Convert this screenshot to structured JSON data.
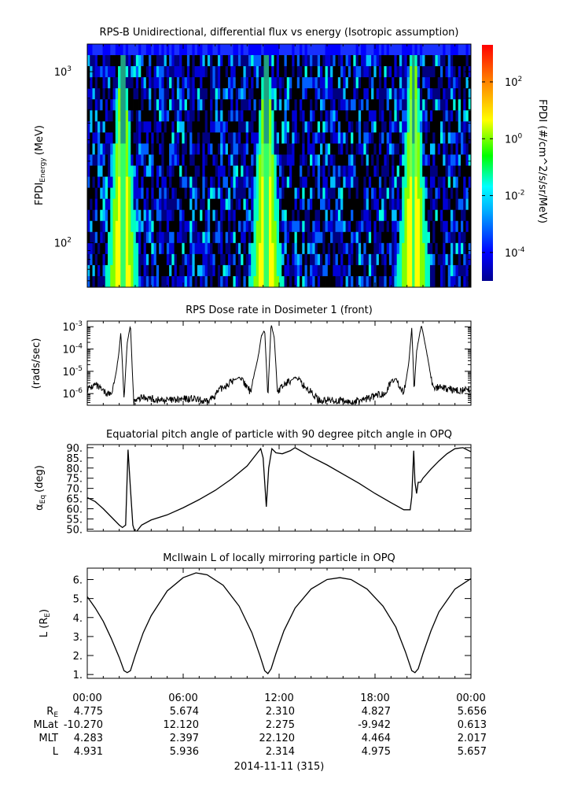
{
  "chart_data": [
    {
      "type": "heatmap",
      "title": "RPS-B  Unidirectional, differential flux vs energy (Isotropic assumption)",
      "ylabel_main": "FPDI",
      "ylabel_sub": "Energy",
      "ylabel_unit": "(MeV)",
      "yscale": "log",
      "ylim": [
        55,
        1450
      ],
      "yticks": [
        {
          "value": 100,
          "base": "10",
          "exp": "2"
        },
        {
          "value": 1000,
          "base": "10",
          "exp": "3"
        }
      ],
      "xlim_hours": [
        0,
        24
      ],
      "colorbar": {
        "label": "FPDI (#/cm^2/s/sr/MeV)",
        "scale": "log",
        "range": [
          1e-05,
          2000
        ],
        "ticks": [
          {
            "value": 0.0001,
            "base": "10",
            "exp": "-4"
          },
          {
            "value": 0.01,
            "base": "10",
            "exp": "-2"
          },
          {
            "value": 1,
            "base": "10",
            "exp": "0"
          },
          {
            "value": 100,
            "base": "10",
            "exp": "2"
          }
        ]
      },
      "flux_peaks_hours": [
        2.2,
        11.2,
        20.4
      ],
      "colors": [
        "#00008f",
        "#0000ff",
        "#00ffff",
        "#00ff00",
        "#ffff00",
        "#ff7f00",
        "#ff0000"
      ]
    },
    {
      "type": "line",
      "title": "RPS  Dose rate in Dosimeter 1 (front)",
      "ylabel": "(rads/sec)",
      "yscale": "log",
      "ylim": [
        3e-07,
        0.0018
      ],
      "yticks": [
        {
          "value": 1e-06,
          "base": "10",
          "exp": "-6"
        },
        {
          "value": 1e-05,
          "base": "10",
          "exp": "-5"
        },
        {
          "value": 0.0001,
          "base": "10",
          "exp": "-4"
        },
        {
          "value": 0.001,
          "base": "10",
          "exp": "-3"
        }
      ],
      "xlim_hours": [
        0,
        24
      ],
      "x": [
        0,
        0.5,
        1,
        1.5,
        1.8,
        2.0,
        2.1,
        2.2,
        2.3,
        2.5,
        2.7,
        2.9,
        3.5,
        4.5,
        5.5,
        6.5,
        7.5,
        8.5,
        9.5,
        10.2,
        10.7,
        10.9,
        11.1,
        11.2,
        11.3,
        11.5,
        11.7,
        11.9,
        12.4,
        13.0,
        13.5,
        14.5,
        15.5,
        16.5,
        17.5,
        18.5,
        19.3,
        19.8,
        20.1,
        20.3,
        20.45,
        20.6,
        20.9,
        21.2,
        21.6,
        22.0,
        23.0,
        24.0
      ],
      "y": [
        1.5e-06,
        2.5e-06,
        1.2e-06,
        9e-07,
        8e-06,
        9e-05,
        0.0006,
        2e-05,
        6e-07,
        0.0002,
        0.0012,
        4e-07,
        7e-07,
        5e-07,
        5e-07,
        6e-07,
        4e-07,
        2e-06,
        5.5e-06,
        1.2e-06,
        5e-05,
        0.0004,
        0.0007,
        2e-05,
        8e-07,
        0.0014,
        0.0003,
        1.2e-06,
        2.8e-06,
        5.5e-06,
        2.5e-06,
        5e-07,
        5e-07,
        4e-07,
        6e-07,
        1e-06,
        5e-06,
        1e-06,
        2e-05,
        0.0009,
        1.5e-06,
        8e-05,
        0.0012,
        0.0001,
        2e-06,
        1.8e-06,
        1.4e-06,
        1.4e-06
      ]
    },
    {
      "type": "line",
      "title": "Equatorial pitch angle of particle with 90 degree pitch angle in OPQ",
      "ylabel_main": "α",
      "ylabel_sub": "Eq",
      "ylabel_unit": "(deg)",
      "ylim": [
        49,
        91.5
      ],
      "yticks": [
        {
          "value": 50,
          "label": "50."
        },
        {
          "value": 55,
          "label": "55."
        },
        {
          "value": 60,
          "label": "60."
        },
        {
          "value": 65,
          "label": "65."
        },
        {
          "value": 70,
          "label": "70."
        },
        {
          "value": 75,
          "label": "75."
        },
        {
          "value": 80,
          "label": "80."
        },
        {
          "value": 85,
          "label": "85."
        },
        {
          "value": 90,
          "label": "90."
        }
      ],
      "xlim_hours": [
        0,
        24
      ],
      "x": [
        0,
        0.5,
        1.0,
        1.5,
        2.0,
        2.2,
        2.4,
        2.55,
        2.7,
        2.85,
        3.0,
        3.4,
        4.0,
        5.0,
        6.0,
        7.0,
        8.0,
        9.0,
        10.0,
        10.6,
        10.85,
        11.0,
        11.2,
        11.35,
        11.55,
        11.8,
        12.2,
        12.7,
        13.0,
        14.0,
        15.0,
        16.0,
        17.0,
        18.0,
        19.0,
        19.8,
        20.2,
        20.3,
        20.42,
        20.5,
        20.6,
        20.7,
        20.85,
        21.0,
        21.5,
        22.0,
        22.5,
        23.0,
        23.5,
        24.0
      ],
      "y": [
        65.5,
        63.5,
        60.0,
        56.0,
        52.0,
        50.8,
        52.0,
        89.0,
        70.0,
        52.0,
        48.0,
        52.0,
        54.5,
        57.0,
        60.5,
        64.5,
        69.0,
        74.5,
        81.0,
        87.0,
        89.5,
        85.0,
        61.0,
        80.0,
        89.5,
        87.5,
        87.0,
        88.5,
        90.0,
        85.5,
        81.5,
        77.0,
        72.5,
        67.5,
        63.0,
        59.5,
        59.5,
        66.0,
        88.5,
        73.0,
        67.5,
        73.0,
        73.0,
        75.0,
        79.5,
        83.5,
        87.0,
        89.5,
        90.0,
        88.0
      ]
    },
    {
      "type": "line",
      "title": "McIlwain L of locally mirroring particle in OPQ",
      "ylabel_main": "L (R",
      "ylabel_sub": "E",
      "ylabel_unit": ")",
      "ylim": [
        0.8,
        6.6
      ],
      "yticks": [
        {
          "value": 1,
          "label": "1."
        },
        {
          "value": 2,
          "label": "2."
        },
        {
          "value": 3,
          "label": "3."
        },
        {
          "value": 4,
          "label": "4."
        },
        {
          "value": 5,
          "label": "5."
        },
        {
          "value": 6,
          "label": "6."
        }
      ],
      "xlim_hours": [
        0,
        24
      ],
      "x": [
        0,
        0.5,
        1.0,
        1.5,
        2.0,
        2.3,
        2.5,
        2.7,
        3.0,
        3.5,
        4.0,
        5.0,
        6.0,
        6.8,
        7.5,
        8.5,
        9.5,
        10.3,
        10.8,
        11.1,
        11.3,
        11.5,
        11.8,
        12.3,
        13.0,
        14.0,
        15.0,
        15.8,
        16.5,
        17.5,
        18.5,
        19.3,
        19.9,
        20.3,
        20.5,
        20.7,
        21.0,
        21.5,
        22.0,
        23.0,
        24.0
      ],
      "y": [
        5.1,
        4.5,
        3.8,
        2.9,
        1.9,
        1.2,
        1.1,
        1.2,
        2.0,
        3.2,
        4.1,
        5.4,
        6.1,
        6.35,
        6.25,
        5.7,
        4.6,
        3.2,
        2.0,
        1.2,
        1.05,
        1.3,
        2.1,
        3.3,
        4.5,
        5.5,
        6.0,
        6.1,
        6.0,
        5.5,
        4.6,
        3.5,
        2.2,
        1.2,
        1.1,
        1.3,
        2.1,
        3.3,
        4.3,
        5.5,
        6.05
      ]
    }
  ],
  "time_axis": {
    "ticks": [
      {
        "hour": 0,
        "label": "00:00"
      },
      {
        "hour": 6,
        "label": "06:00"
      },
      {
        "hour": 12,
        "label": "12:00"
      },
      {
        "hour": 18,
        "label": "18:00"
      },
      {
        "hour": 24,
        "label": "00:00"
      }
    ],
    "date_label": "2014-11-11 (315)"
  },
  "ephemeris": {
    "rows": [
      {
        "label_main": "R",
        "label_sub": "E",
        "values": [
          "4.775",
          "5.674",
          "2.310",
          "4.827",
          "5.656"
        ]
      },
      {
        "label_main": "MLat",
        "label_sub": "",
        "values": [
          "-10.270",
          "12.120",
          "2.275",
          "-9.942",
          "0.613"
        ]
      },
      {
        "label_main": "MLT",
        "label_sub": "",
        "values": [
          "4.283",
          "2.397",
          "22.120",
          "4.464",
          "2.017"
        ]
      },
      {
        "label_main": "L",
        "label_sub": "",
        "values": [
          "4.931",
          "5.936",
          "2.314",
          "4.975",
          "5.657"
        ]
      }
    ]
  }
}
